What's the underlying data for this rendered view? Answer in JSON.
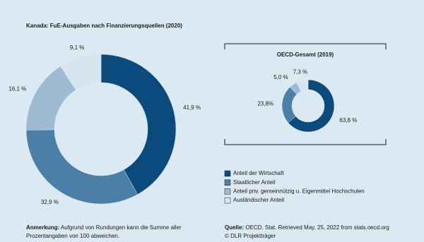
{
  "chart_data": [
    {
      "type": "donut",
      "title": "Kanada: FuE-Ausgaben nach Finanzierungsquellen (2020)",
      "categories": [
        "Anteil der Wirtschaft",
        "Staatlicher Anteil",
        "Anteil priv. gemeinnützig u. Eigenmittel Hochschulen",
        "Ausländischer Anteil"
      ],
      "values": [
        41.9,
        32.9,
        16.1,
        9.1
      ],
      "value_labels": [
        "41,9 %",
        "32,9 %",
        "16,1 %",
        "9,1 %"
      ],
      "colors": [
        "#0b4a7d",
        "#4b7fa8",
        "#9dbcd3",
        "#d6e6ef"
      ]
    },
    {
      "type": "donut",
      "title": "OECD-Gesamt (2019)",
      "values": [
        63.8,
        23.8,
        5.0,
        7.3
      ],
      "value_labels": [
        "63,8 %",
        "23,8%",
        "5,0 %",
        "7,3 %"
      ],
      "colors": [
        "#0b4a7d",
        "#4b7fa8",
        "#9dbcd3",
        "#d6e6ef"
      ]
    }
  ],
  "footnote": {
    "label": "Anmerkung:",
    "text": "Aufgrund von Rundungen kann die Summe aller Prozentangaben von 100 abweichen."
  },
  "source": {
    "label": "Quelle:",
    "text": "OECD. Stat. Retrieved May, 25, 2022 from stats.oecd.org",
    "credit": "© DLR Projektträger"
  }
}
